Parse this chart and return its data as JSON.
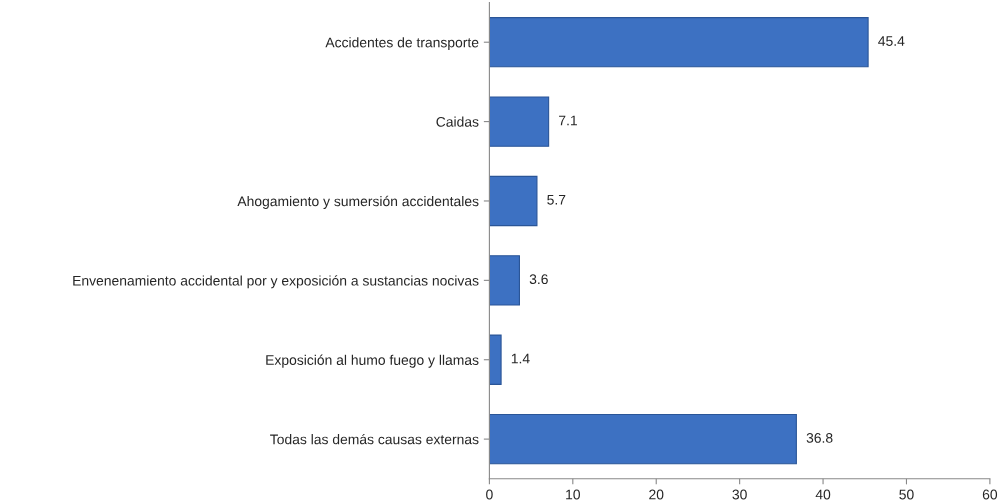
{
  "chart_data": {
    "type": "bar",
    "orientation": "horizontal",
    "categories": [
      "Accidentes de transporte",
      "Caidas",
      "Ahogamiento y sumersión accidentales",
      "Envenenamiento accidental por y exposición a sustancias nocivas",
      "Exposición al humo fuego y llamas",
      "Todas las demás causas externas"
    ],
    "values": [
      45.4,
      7.1,
      5.7,
      3.6,
      1.4,
      36.8
    ],
    "color": "#3d71c2",
    "xlim": [
      0,
      60
    ],
    "xticks": [
      0,
      10,
      20,
      30,
      40,
      50,
      60
    ],
    "grid": false,
    "data_labels": true
  }
}
